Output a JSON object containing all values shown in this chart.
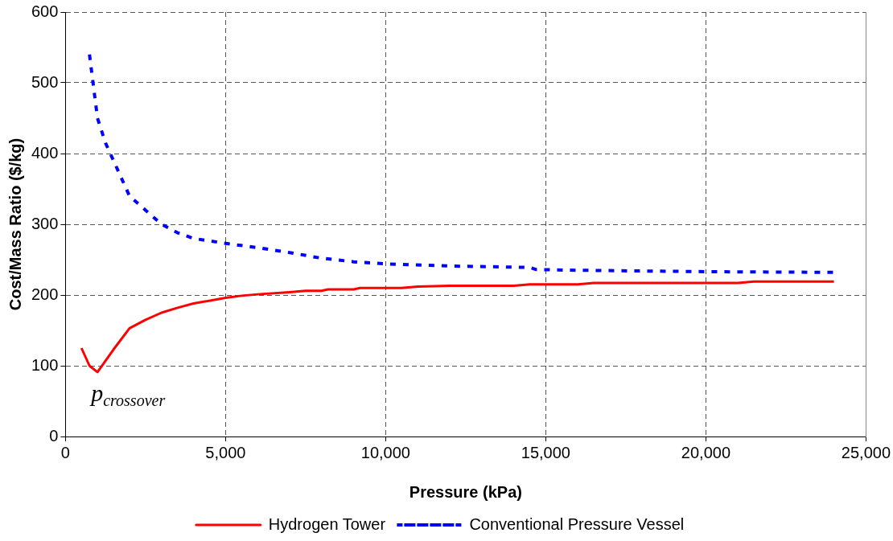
{
  "chart_data": {
    "type": "line",
    "xlabel": "Pressure (kPa)",
    "ylabel": "Cost/Mass Ratio ($/kg)",
    "xlim": [
      0,
      25000
    ],
    "xticks": [
      {
        "value": 0,
        "label": "0"
      },
      {
        "value": 5000,
        "label": "5,000"
      },
      {
        "value": 10000,
        "label": "10,000"
      },
      {
        "value": 15000,
        "label": "15,000"
      },
      {
        "value": 20000,
        "label": "20,000"
      },
      {
        "value": 25000,
        "label": "25,000"
      }
    ],
    "ylim": [
      0,
      600
    ],
    "yticks": [
      0,
      100,
      200,
      300,
      400,
      500,
      600
    ],
    "grid": true,
    "legend": "bottom",
    "marker": "none",
    "series": [
      {
        "name": "Hydrogen Tower",
        "color": "#ff0000",
        "line_style": "solid",
        "x": [
          500,
          750,
          1000,
          1500,
          2000,
          2500,
          3000,
          3500,
          4000,
          5000,
          5500,
          6000,
          7000,
          7500,
          8000,
          8200,
          9000,
          9200,
          10500,
          11000,
          12000,
          14000,
          14500,
          16000,
          16500,
          21000,
          21500,
          24000
        ],
        "values": [
          125,
          100,
          91,
          123,
          153,
          165,
          175,
          182,
          188,
          196,
          199,
          201,
          204,
          206,
          206,
          208,
          208,
          210,
          210,
          212,
          213,
          213,
          215,
          215,
          217,
          217,
          219,
          219
        ]
      },
      {
        "name": "Conventional Pressure Vessel",
        "color": "#0000ff",
        "line_style": "dotted",
        "x": [
          750,
          1000,
          1250,
          1500,
          2000,
          2500,
          3000,
          3500,
          4000,
          5000,
          6000,
          7000,
          8000,
          9000,
          10000,
          12000,
          14500,
          14700,
          16000,
          20000,
          24000
        ],
        "values": [
          540,
          450,
          415,
          390,
          340,
          320,
          300,
          288,
          280,
          273,
          267,
          260,
          252,
          247,
          244,
          241,
          239,
          236,
          235,
          233,
          232
        ]
      }
    ],
    "annotations": [
      {
        "text": "p$_{crossover}$",
        "x": 1000,
        "y": 91
      }
    ]
  }
}
